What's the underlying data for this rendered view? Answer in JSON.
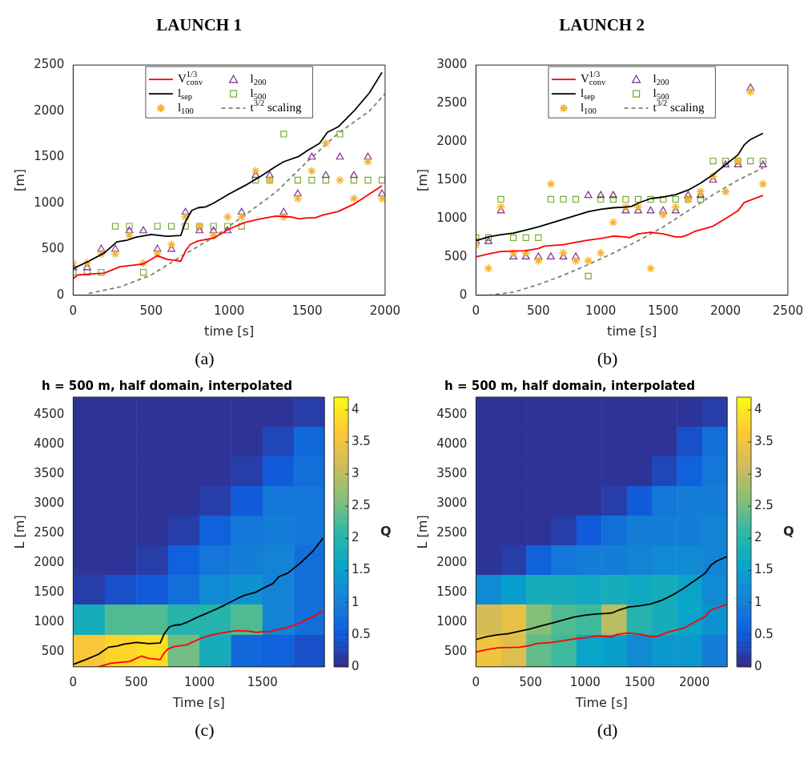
{
  "chart_data": [
    {
      "type": "line",
      "title": "LAUNCH 1",
      "xlabel": "time [s]",
      "ylabel": "[m]",
      "xlim": [
        0,
        2000
      ],
      "xticks": [
        0,
        500,
        1000,
        1500,
        2000
      ],
      "ylim": [
        0,
        2500
      ],
      "yticks": [
        0,
        500,
        1000,
        1500,
        2000,
        2500
      ],
      "legend": "top",
      "annotations": [
        "(a)"
      ],
      "series": [
        {
          "name": "V$_{conv}$$^{1/3}$",
          "type": "line",
          "color": "#ff0000",
          "x": [
            0,
            30,
            100,
            200,
            300,
            400,
            450,
            500,
            540,
            600,
            650,
            690,
            720,
            750,
            800,
            900,
            1000,
            1100,
            1200,
            1300,
            1400,
            1450,
            1500,
            1550,
            1600,
            1700,
            1800,
            1900,
            1980
          ],
          "values": [
            180,
            220,
            230,
            240,
            310,
            330,
            340,
            390,
            430,
            390,
            380,
            370,
            480,
            550,
            590,
            620,
            720,
            790,
            830,
            860,
            850,
            830,
            840,
            840,
            870,
            910,
            990,
            1100,
            1190
          ]
        },
        {
          "name": "l$_{sep}$",
          "type": "line",
          "color": "#000000",
          "x": [
            0,
            100,
            200,
            280,
            350,
            400,
            500,
            600,
            690,
            720,
            760,
            800,
            850,
            900,
            1000,
            1100,
            1200,
            1300,
            1350,
            1450,
            1500,
            1580,
            1630,
            1700,
            1800,
            1900,
            1980
          ],
          "values": [
            290,
            370,
            460,
            580,
            600,
            630,
            660,
            640,
            650,
            800,
            920,
            950,
            960,
            1000,
            1100,
            1190,
            1290,
            1400,
            1450,
            1510,
            1570,
            1650,
            1770,
            1830,
            2000,
            2200,
            2420
          ]
        },
        {
          "name": "l$_{100}$",
          "type": "scatter",
          "marker": "cross",
          "color": "#f5b335",
          "x": [
            0,
            90,
            180,
            270,
            360,
            450,
            540,
            630,
            720,
            810,
            900,
            990,
            1080,
            1170,
            1260,
            1350,
            1440,
            1530,
            1620,
            1710,
            1800,
            1890,
            1980
          ],
          "values": [
            350,
            350,
            450,
            450,
            650,
            350,
            450,
            550,
            850,
            750,
            650,
            850,
            850,
            1350,
            1250,
            850,
            1050,
            1350,
            1650,
            1250,
            1050,
            1450,
            1050
          ]
        },
        {
          "name": "l$_{200}$",
          "type": "scatter",
          "marker": "triangle",
          "color": "#7e2f8e",
          "x": [
            0,
            90,
            180,
            270,
            360,
            450,
            540,
            630,
            720,
            810,
            900,
            990,
            1080,
            1170,
            1260,
            1350,
            1440,
            1530,
            1620,
            1710,
            1800,
            1890,
            1980
          ],
          "values": [
            300,
            300,
            500,
            500,
            700,
            700,
            500,
            500,
            900,
            700,
            700,
            700,
            900,
            1300,
            1300,
            900,
            1100,
            1500,
            1300,
            1500,
            1300,
            1500,
            1100
          ]
        },
        {
          "name": "l$_{500}$",
          "type": "scatter",
          "marker": "square",
          "color": "#77ac30",
          "x": [
            0,
            90,
            180,
            270,
            360,
            450,
            540,
            630,
            720,
            810,
            900,
            990,
            1080,
            1170,
            1260,
            1350,
            1440,
            1530,
            1620,
            1710,
            1800,
            1890,
            1980
          ],
          "values": [
            250,
            250,
            250,
            750,
            750,
            250,
            750,
            750,
            750,
            750,
            750,
            750,
            750,
            1250,
            1250,
            1750,
            1250,
            1250,
            1250,
            1750,
            1250,
            1250,
            1250
          ]
        },
        {
          "name": "t$^{3/2}$ scaling",
          "type": "line",
          "line_style": "dashed",
          "color": "#808070",
          "x": [
            100,
            300,
            500,
            700,
            900,
            1100,
            1300,
            1500,
            1700,
            1900,
            2000
          ],
          "values": [
            20,
            90,
            220,
            430,
            630,
            870,
            1120,
            1450,
            1760,
            2000,
            2190
          ]
        }
      ]
    },
    {
      "type": "line",
      "title": "LAUNCH 2",
      "xlabel": "time [s]",
      "ylabel": "[m]",
      "xlim": [
        0,
        2500
      ],
      "xticks": [
        0,
        500,
        1000,
        1500,
        2000,
        2500
      ],
      "ylim": [
        0,
        3000
      ],
      "yticks": [
        0,
        500,
        1000,
        1500,
        2000,
        2500,
        3000
      ],
      "legend": "top",
      "annotations": [
        "(b)"
      ],
      "series": [
        {
          "name": "V$_{conv}$$^{1/3}$",
          "type": "line",
          "color": "#ff0000",
          "x": [
            0,
            100,
            200,
            400,
            500,
            550,
            700,
            800,
            900,
            1000,
            1100,
            1200,
            1230,
            1300,
            1400,
            1500,
            1600,
            1650,
            1700,
            1750,
            1900,
            2000,
            2100,
            2150,
            2300
          ],
          "values": [
            500,
            540,
            570,
            580,
            610,
            640,
            660,
            690,
            720,
            740,
            770,
            760,
            750,
            800,
            820,
            800,
            760,
            760,
            790,
            830,
            900,
            1000,
            1100,
            1210,
            1300
          ]
        },
        {
          "name": "l$_{sep}$",
          "type": "line",
          "color": "#000000",
          "x": [
            0,
            100,
            200,
            300,
            400,
            500,
            600,
            700,
            800,
            900,
            1000,
            1100,
            1200,
            1250,
            1300,
            1400,
            1500,
            1600,
            1700,
            1800,
            1900,
            2000,
            2100,
            2150,
            2200,
            2300
          ],
          "values": [
            710,
            760,
            790,
            810,
            850,
            890,
            940,
            990,
            1040,
            1090,
            1120,
            1140,
            1150,
            1160,
            1200,
            1260,
            1280,
            1310,
            1370,
            1460,
            1570,
            1700,
            1830,
            1960,
            2030,
            2110
          ]
        },
        {
          "name": "l$_{100}$",
          "type": "scatter",
          "marker": "cross",
          "color": "#f5b335",
          "x": [
            0,
            100,
            200,
            300,
            400,
            500,
            600,
            700,
            800,
            900,
            1000,
            1100,
            1200,
            1300,
            1400,
            1500,
            1600,
            1700,
            1800,
            1900,
            2000,
            2100,
            2200,
            2300
          ],
          "values": [
            650,
            350,
            1150,
            550,
            550,
            450,
            1450,
            550,
            450,
            450,
            550,
            950,
            1150,
            1150,
            350,
            1050,
            1150,
            1250,
            1350,
            1550,
            1350,
            1750,
            2650,
            1450
          ]
        },
        {
          "name": "l$_{200}$",
          "type": "scatter",
          "marker": "triangle",
          "color": "#7e2f8e",
          "x": [
            0,
            100,
            200,
            300,
            400,
            500,
            600,
            700,
            800,
            900,
            1000,
            1100,
            1200,
            1300,
            1400,
            1500,
            1600,
            1700,
            1800,
            1900,
            2000,
            2100,
            2200,
            2300
          ],
          "values": [
            700,
            700,
            1100,
            500,
            500,
            500,
            500,
            500,
            500,
            1300,
            1300,
            1300,
            1100,
            1100,
            1100,
            1100,
            1100,
            1300,
            1300,
            1500,
            1700,
            1700,
            2700,
            1700
          ]
        },
        {
          "name": "l$_{500}$",
          "type": "scatter",
          "marker": "square",
          "color": "#77ac30",
          "x": [
            0,
            100,
            200,
            300,
            400,
            500,
            600,
            700,
            800,
            900,
            1000,
            1100,
            1200,
            1300,
            1400,
            1500,
            1600,
            1700,
            1800,
            1900,
            2000,
            2100,
            2200,
            2300
          ],
          "values": [
            750,
            750,
            1250,
            750,
            750,
            750,
            1250,
            1250,
            1250,
            250,
            1250,
            1250,
            1250,
            1250,
            1250,
            1250,
            1250,
            1250,
            1250,
            1750,
            1750,
            1750,
            1750,
            1750
          ]
        },
        {
          "name": "t$^{3/2}$ scaling",
          "type": "line",
          "line_style": "dashed",
          "color": "#808070",
          "x": [
            100,
            300,
            500,
            700,
            900,
            1100,
            1300,
            1500,
            1700,
            1900,
            2100,
            2300
          ],
          "values": [
            0,
            40,
            140,
            260,
            400,
            550,
            710,
            890,
            1100,
            1310,
            1500,
            1660
          ]
        }
      ]
    },
    {
      "type": "heatmap",
      "title": "h = 500 m, half domain, interpolated",
      "xlabel": "Time [s]",
      "ylabel": "L [m]",
      "clabel": "Q",
      "xlim": [
        0,
        1990
      ],
      "xticks": [
        0,
        500,
        1000,
        1500
      ],
      "ylim": [
        250,
        4800
      ],
      "yticks": [
        500,
        1000,
        1500,
        2000,
        2500,
        3000,
        3500,
        4000,
        4500
      ],
      "clim": [
        0,
        4.2
      ],
      "cticks": [
        0,
        0.5,
        1,
        1.5,
        2,
        2.5,
        3,
        3.5,
        4
      ],
      "annotations": [
        "(c)"
      ],
      "x": [
        125,
        375,
        625,
        875,
        1125,
        1375,
        1625,
        1875
      ],
      "y": [
        4550,
        4050,
        3550,
        3050,
        2550,
        2050,
        1550,
        1050,
        525
      ],
      "cells": [
        [
          0.1,
          0.1,
          0.1,
          0.1,
          0.1,
          0.1,
          0.1,
          0.2
        ],
        [
          0.1,
          0.1,
          0.1,
          0.1,
          0.1,
          0.1,
          0.3,
          0.7
        ],
        [
          0.1,
          0.1,
          0.1,
          0.1,
          0.1,
          0.2,
          0.5,
          0.8
        ],
        [
          0.1,
          0.1,
          0.1,
          0.1,
          0.2,
          0.5,
          0.9,
          0.9
        ],
        [
          0.1,
          0.1,
          0.1,
          0.2,
          0.6,
          0.9,
          1.0,
          0.9
        ],
        [
          0.1,
          0.1,
          0.2,
          0.6,
          0.9,
          1.0,
          1.1,
          0.8
        ],
        [
          0.2,
          0.4,
          0.5,
          0.8,
          1.2,
          1.3,
          1.1,
          0.8
        ],
        [
          1.8,
          2.3,
          2.3,
          2.0,
          2.0,
          2.3,
          1.1,
          0.8
        ],
        [
          3.6,
          3.8,
          3.9,
          2.5,
          1.8,
          0.7,
          0.6,
          0.4
        ]
      ],
      "series": [
        {
          "type": "line",
          "color": "#ff0000",
          "x": [
            200,
            300,
            400,
            450,
            500,
            540,
            600,
            650,
            690,
            720,
            750,
            800,
            900,
            1000,
            1100,
            1200,
            1300,
            1400,
            1450,
            1500,
            1550,
            1600,
            1700,
            1800,
            1900,
            1980
          ],
          "values": [
            250,
            310,
            330,
            340,
            390,
            430,
            390,
            380,
            370,
            480,
            550,
            590,
            620,
            720,
            790,
            830,
            860,
            850,
            830,
            840,
            840,
            870,
            910,
            990,
            1100,
            1190
          ]
        },
        {
          "type": "line",
          "color": "#000000",
          "x": [
            0,
            100,
            200,
            280,
            350,
            400,
            500,
            600,
            690,
            720,
            760,
            800,
            850,
            900,
            1000,
            1100,
            1200,
            1300,
            1350,
            1450,
            1500,
            1580,
            1630,
            1700,
            1800,
            1900,
            1980
          ],
          "values": [
            290,
            370,
            460,
            580,
            600,
            630,
            660,
            640,
            650,
            800,
            920,
            950,
            960,
            1000,
            1100,
            1190,
            1290,
            1400,
            1450,
            1510,
            1570,
            1650,
            1770,
            1830,
            2000,
            2200,
            2420
          ]
        }
      ]
    },
    {
      "type": "heatmap",
      "title": "h = 500 m, half domain, interpolated",
      "xlabel": "Time [s]",
      "ylabel": "L [m]",
      "clabel": "Q",
      "xlim": [
        0,
        2300
      ],
      "xticks": [
        0,
        500,
        1000,
        1500,
        2000
      ],
      "ylim": [
        250,
        4800
      ],
      "yticks": [
        500,
        1000,
        1500,
        2000,
        2500,
        3000,
        3500,
        4000,
        4500
      ],
      "clim": [
        0,
        4.2
      ],
      "cticks": [
        0,
        0.5,
        1,
        1.5,
        2,
        2.5,
        3,
        3.5,
        4
      ],
      "annotations": [
        "(d)"
      ],
      "x": [
        115,
        345,
        575,
        805,
        1035,
        1265,
        1495,
        1725,
        1955,
        2185
      ],
      "y": [
        4550,
        4050,
        3550,
        3050,
        2550,
        2050,
        1550,
        1050,
        525
      ],
      "cells": [
        [
          0.1,
          0.1,
          0.1,
          0.1,
          0.1,
          0.1,
          0.1,
          0.1,
          0.1,
          0.2
        ],
        [
          0.1,
          0.1,
          0.1,
          0.1,
          0.1,
          0.1,
          0.1,
          0.1,
          0.4,
          0.8
        ],
        [
          0.1,
          0.1,
          0.1,
          0.1,
          0.1,
          0.1,
          0.1,
          0.3,
          0.6,
          0.9
        ],
        [
          0.1,
          0.1,
          0.1,
          0.1,
          0.1,
          0.2,
          0.5,
          0.9,
          1.0,
          1.0
        ],
        [
          0.1,
          0.1,
          0.1,
          0.2,
          0.5,
          0.8,
          1.0,
          1.0,
          1.0,
          1.1
        ],
        [
          0.1,
          0.2,
          0.6,
          0.9,
          1.0,
          1.0,
          1.1,
          1.2,
          1.2,
          1.1
        ],
        [
          1.2,
          1.5,
          1.8,
          1.8,
          1.7,
          1.8,
          1.7,
          1.8,
          1.6,
          1.2
        ],
        [
          3.2,
          3.4,
          2.6,
          2.3,
          2.2,
          3.0,
          2.0,
          1.8,
          1.6,
          1.3
        ],
        [
          3.5,
          3.3,
          2.4,
          2.2,
          1.6,
          1.5,
          1.2,
          1.4,
          1.4,
          1.0
        ]
      ],
      "series": [
        {
          "type": "line",
          "color": "#ff0000",
          "x": [
            0,
            100,
            200,
            400,
            500,
            550,
            700,
            800,
            900,
            1000,
            1100,
            1200,
            1230,
            1300,
            1400,
            1500,
            1600,
            1650,
            1700,
            1750,
            1900,
            2000,
            2100,
            2150,
            2300
          ],
          "values": [
            500,
            540,
            570,
            580,
            610,
            640,
            660,
            690,
            720,
            740,
            770,
            760,
            750,
            800,
            820,
            800,
            760,
            760,
            790,
            830,
            900,
            1000,
            1100,
            1210,
            1300
          ]
        },
        {
          "type": "line",
          "color": "#000000",
          "x": [
            0,
            100,
            200,
            300,
            400,
            500,
            600,
            700,
            800,
            900,
            1000,
            1100,
            1200,
            1250,
            1300,
            1400,
            1500,
            1600,
            1700,
            1800,
            1900,
            2000,
            2100,
            2150,
            2200,
            2300
          ],
          "values": [
            710,
            760,
            790,
            810,
            850,
            890,
            940,
            990,
            1040,
            1090,
            1120,
            1140,
            1150,
            1160,
            1200,
            1260,
            1280,
            1310,
            1370,
            1460,
            1570,
            1700,
            1830,
            1960,
            2030,
            2110
          ]
        }
      ]
    }
  ]
}
